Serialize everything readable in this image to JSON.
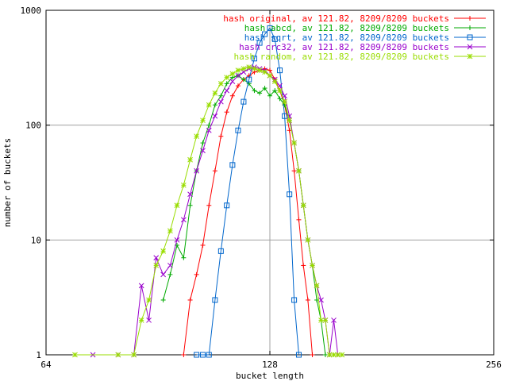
{
  "chart_data": {
    "type": "line",
    "title": "",
    "xlabel": "bucket length",
    "ylabel": "number of buckets",
    "x_scale": "log2",
    "y_scale": "log10",
    "xlim": [
      64,
      256
    ],
    "ylim": [
      1,
      1000
    ],
    "x_ticks": [
      {
        "value": 64,
        "label": "64"
      },
      {
        "value": 128,
        "label": "128"
      },
      {
        "value": 256,
        "label": "256"
      }
    ],
    "y_ticks": [
      {
        "value": 1,
        "label": "1"
      },
      {
        "value": 10,
        "label": "10"
      },
      {
        "value": 100,
        "label": "100"
      },
      {
        "value": 1000,
        "label": "1000"
      }
    ],
    "grid": true,
    "legend_position": "top-right",
    "series": [
      {
        "name": "hash original, av 121.82, 8209/8209 buckets",
        "color": "#ff0000",
        "marker": "plus",
        "x": [
          98,
          100,
          102,
          104,
          106,
          108,
          110,
          112,
          114,
          116,
          118,
          120,
          122,
          124,
          126,
          128,
          130,
          132,
          134,
          136,
          138,
          140,
          142,
          144,
          146
        ],
        "y": [
          1,
          3,
          5,
          9,
          20,
          40,
          80,
          130,
          180,
          220,
          250,
          270,
          290,
          300,
          310,
          300,
          250,
          200,
          150,
          90,
          40,
          15,
          6,
          3,
          1
        ]
      },
      {
        "name": "hash abcd, av 121.82, 8209/8209 buckets",
        "color": "#00aa00",
        "marker": "plus",
        "x": [
          92,
          94,
          96,
          98,
          100,
          102,
          104,
          106,
          108,
          110,
          112,
          114,
          116,
          118,
          120,
          122,
          124,
          126,
          128,
          130,
          132,
          134,
          136,
          138,
          140,
          142,
          144,
          146,
          148,
          150,
          152,
          154
        ],
        "y": [
          3,
          5,
          9,
          7,
          20,
          40,
          70,
          100,
          150,
          180,
          230,
          260,
          270,
          250,
          230,
          200,
          190,
          210,
          180,
          200,
          170,
          150,
          110,
          70,
          40,
          20,
          10,
          6,
          3,
          2,
          1,
          1
        ]
      },
      {
        "name": "hash sqrt, av 121.82, 8209/8209 buckets",
        "color": "#0066cc",
        "marker": "square",
        "x": [
          102,
          104,
          106,
          108,
          110,
          112,
          114,
          116,
          118,
          120,
          122,
          124,
          126,
          128,
          130,
          132,
          134,
          136,
          138,
          140
        ],
        "y": [
          1,
          1,
          1,
          3,
          8,
          20,
          45,
          90,
          160,
          250,
          380,
          520,
          620,
          700,
          560,
          300,
          120,
          25,
          3,
          1
        ]
      },
      {
        "name": "hash crc32, av 121.82, 8209/8209 buckets",
        "color": "#9900cc",
        "marker": "cross",
        "x": [
          74,
          80,
          84,
          86,
          88,
          90,
          92,
          94,
          96,
          98,
          100,
          102,
          104,
          106,
          108,
          110,
          112,
          114,
          116,
          118,
          120,
          122,
          124,
          126,
          128,
          130,
          132,
          134,
          136,
          138,
          140,
          142,
          144,
          146,
          148,
          150,
          152,
          154,
          156,
          158
        ],
        "y": [
          1,
          1,
          1,
          4,
          2,
          7,
          5,
          6,
          10,
          15,
          25,
          40,
          60,
          90,
          120,
          160,
          200,
          240,
          270,
          290,
          310,
          320,
          310,
          300,
          270,
          250,
          220,
          180,
          120,
          70,
          40,
          20,
          10,
          6,
          4,
          3,
          2,
          1,
          2,
          1
        ]
      },
      {
        "name": "hash random, av 121.82, 8209/8209 buckets",
        "color": "#99dd00",
        "marker": "star",
        "x": [
          70,
          80,
          84,
          86,
          88,
          90,
          92,
          94,
          96,
          98,
          100,
          102,
          104,
          106,
          108,
          110,
          112,
          114,
          116,
          118,
          120,
          122,
          124,
          126,
          128,
          130,
          132,
          134,
          136,
          138,
          140,
          142,
          144,
          146,
          148,
          150,
          152,
          154,
          156,
          158,
          160
        ],
        "y": [
          1,
          1,
          1,
          2,
          3,
          6,
          8,
          12,
          20,
          30,
          50,
          80,
          110,
          150,
          190,
          230,
          260,
          280,
          300,
          310,
          320,
          310,
          300,
          290,
          270,
          240,
          200,
          160,
          110,
          70,
          40,
          20,
          10,
          6,
          4,
          2,
          2,
          1,
          1,
          1,
          1
        ]
      }
    ]
  }
}
